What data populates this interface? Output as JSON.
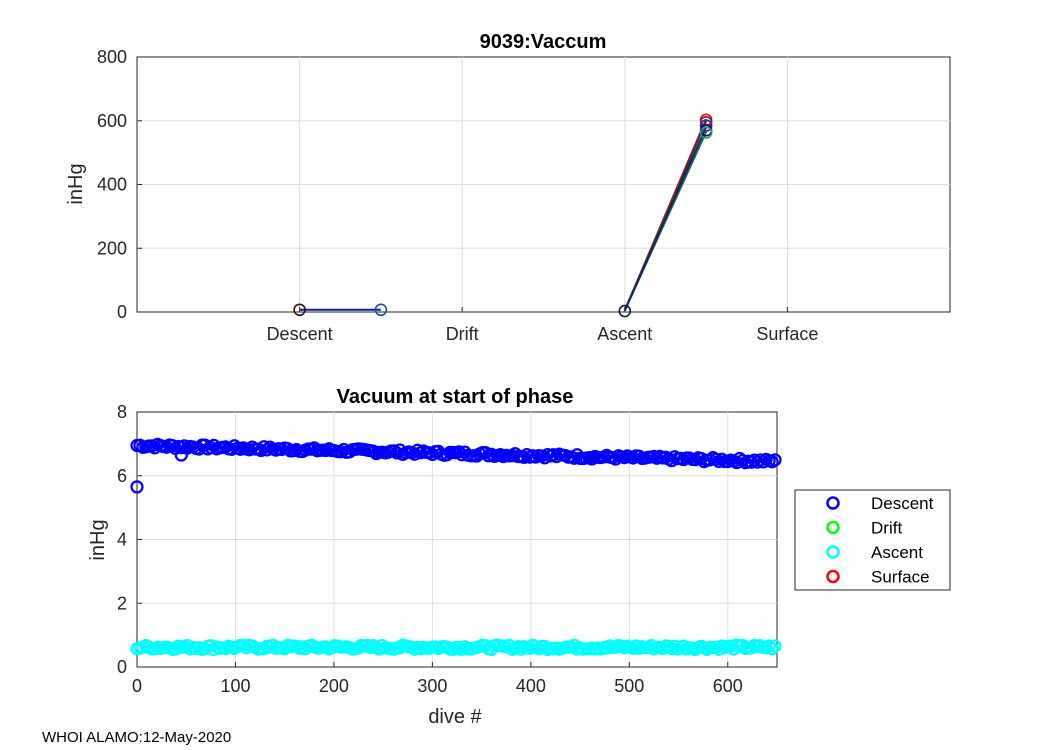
{
  "footer": "WHOI ALAMO:12-May-2020",
  "chart_data": [
    {
      "type": "line",
      "title": "9039:Vaccum",
      "xlabel": "",
      "ylabel": "inHg",
      "categories": [
        "Descent",
        "Drift",
        "Ascent",
        "Surface"
      ],
      "xlim": [
        0,
        5
      ],
      "ylim": [
        0,
        800
      ],
      "yticks": [
        0,
        200,
        400,
        600,
        800
      ],
      "grid": true,
      "segments": [
        {
          "name": "descent",
          "color": "#0b1f9c",
          "x": [
            1.0,
            1.5
          ],
          "y": [
            7,
            7
          ]
        },
        {
          "name": "ascent-a",
          "color": "#000080",
          "x": [
            3.0,
            3.5
          ],
          "y": [
            5,
            600
          ]
        },
        {
          "name": "ascent-b",
          "color": "#8b1a1a",
          "x": [
            3.0,
            3.5
          ],
          "y": [
            5,
            605
          ]
        },
        {
          "name": "ascent-c",
          "color": "#1f6f3f",
          "x": [
            3.0,
            3.5
          ],
          "y": [
            5,
            565
          ]
        },
        {
          "name": "ascent-d",
          "color": "#0a2a6b",
          "x": [
            3.0,
            3.5
          ],
          "y": [
            5,
            580
          ]
        }
      ],
      "markers": [
        {
          "x": 1.0,
          "y": 7,
          "color": "#3b1010"
        },
        {
          "x": 1.5,
          "y": 7,
          "color": "#1f4f8f"
        },
        {
          "x": 3.0,
          "y": 3,
          "color": "#0a1a3a"
        },
        {
          "x": 3.5,
          "y": 603,
          "color": "#d21414"
        },
        {
          "x": 3.5,
          "y": 595,
          "color": "#7a1a4a"
        },
        {
          "x": 3.5,
          "y": 585,
          "color": "#2a2a9a"
        },
        {
          "x": 3.5,
          "y": 570,
          "color": "#0a0a8a"
        },
        {
          "x": 3.5,
          "y": 563,
          "color": "#1f9f5f"
        }
      ]
    },
    {
      "type": "scatter",
      "title": "Vacuum at start of phase",
      "xlabel": "dive #",
      "ylabel": "inHg",
      "xlim": [
        0,
        650
      ],
      "ylim": [
        0,
        8
      ],
      "xticks": [
        0,
        100,
        200,
        300,
        400,
        500,
        600
      ],
      "yticks": [
        0,
        2,
        4,
        6,
        8
      ],
      "grid": true,
      "legend_position": "outside-right",
      "series": [
        {
          "name": "Descent",
          "color": "#0000ff",
          "trend": {
            "x": [
              0,
              650
            ],
            "y": [
              6.95,
              6.45
            ]
          },
          "outliers": [
            {
              "x": 0,
              "y": 5.65
            },
            {
              "x": 45,
              "y": 6.65
            }
          ]
        },
        {
          "name": "Drift",
          "color": "#00ff00",
          "trend": null,
          "outliers": []
        },
        {
          "name": "Ascent",
          "color": "#00ffff",
          "trend": {
            "x": [
              0,
              650
            ],
            "y": [
              0.62,
              0.62
            ]
          },
          "outliers": []
        },
        {
          "name": "Surface",
          "color": "#ff0000",
          "trend": null,
          "outliers": []
        }
      ]
    }
  ]
}
